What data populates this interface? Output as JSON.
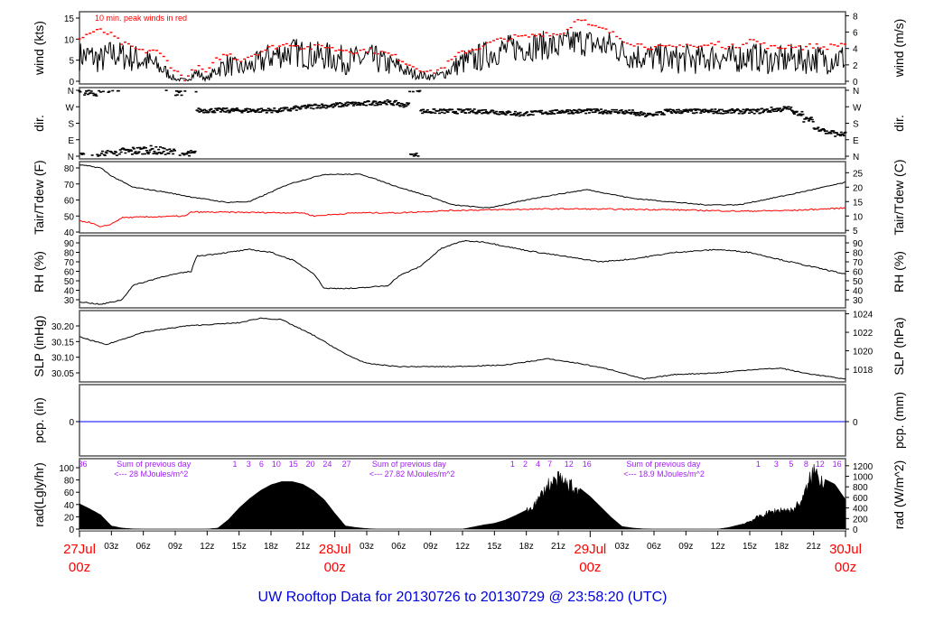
{
  "chart_data": {
    "type": "line",
    "title": "UW Rooftop Data for 20130726  to  20130729 @ 23:58:20  (UTC)",
    "xlim": [
      0,
      72
    ],
    "x_ticks": [
      {
        "h": 3,
        "label": "03z"
      },
      {
        "h": 6,
        "label": "06z"
      },
      {
        "h": 9,
        "label": "09z"
      },
      {
        "h": 12,
        "label": "12z"
      },
      {
        "h": 15,
        "label": "15z"
      },
      {
        "h": 18,
        "label": "18z"
      },
      {
        "h": 21,
        "label": "21z"
      },
      {
        "h": 27,
        "label": "03z"
      },
      {
        "h": 30,
        "label": "06z"
      },
      {
        "h": 33,
        "label": "09z"
      },
      {
        "h": 36,
        "label": "12z"
      },
      {
        "h": 39,
        "label": "15z"
      },
      {
        "h": 42,
        "label": "18z"
      },
      {
        "h": 45,
        "label": "21z"
      },
      {
        "h": 51,
        "label": "03z"
      },
      {
        "h": 54,
        "label": "06z"
      },
      {
        "h": 57,
        "label": "09z"
      },
      {
        "h": 60,
        "label": "12z"
      },
      {
        "h": 63,
        "label": "15z"
      },
      {
        "h": 66,
        "label": "18z"
      },
      {
        "h": 69,
        "label": "21z"
      }
    ],
    "day_labels": [
      {
        "h": 0,
        "date": "27Jul",
        "time": "00z"
      },
      {
        "h": 24,
        "date": "28Jul",
        "time": "00z"
      },
      {
        "h": 48,
        "date": "29Jul",
        "time": "00z"
      },
      {
        "h": 72,
        "date": "30Jul",
        "time": "00z"
      }
    ],
    "panels": {
      "wind": {
        "ylabel_left": "wind (kts)",
        "ylabel_right": "wind (m/s)",
        "ylim": [
          0,
          16
        ],
        "ticks_left": [
          0,
          5,
          10,
          15
        ],
        "ticks_right": [
          0,
          2,
          4,
          6,
          8
        ],
        "annotation": "10 min. peak winds in red",
        "series_color": "#000000",
        "peak_color": "#ff0000",
        "mean_hourly": [
          6,
          6,
          5,
          6.5,
          6,
          5.5,
          5,
          4,
          2.5,
          0.5,
          0.3,
          2,
          0.5,
          3,
          4,
          3,
          3.5,
          4.5,
          6,
          6.5,
          7,
          6.5,
          6,
          6,
          5.5,
          5,
          5,
          5.5,
          5,
          4,
          3.5,
          2,
          1.5,
          1,
          1.5,
          3,
          4.5,
          5,
          6,
          7,
          7.5,
          8,
          8,
          8.5,
          8.5,
          8,
          9,
          9.5,
          9,
          8.5,
          8.5,
          7,
          6,
          6,
          5.5,
          5.5,
          5,
          5.5,
          5,
          5.5,
          6,
          5,
          5.5,
          6,
          5.5,
          5,
          5,
          5.5,
          5,
          5.5,
          5,
          5.5,
          5.5
        ],
        "peak_hourly": [
          10,
          11.5,
          12,
          11,
          9,
          8,
          7,
          7.5,
          5.5,
          2.5,
          0.5,
          3.5,
          2,
          5.5,
          6.5,
          5,
          6,
          7,
          8,
          8.5,
          9,
          8,
          8,
          8.5,
          7.5,
          7.5,
          7,
          7.5,
          7,
          6.5,
          5.5,
          4,
          3,
          2,
          3,
          5,
          7,
          7.5,
          8.5,
          9.5,
          10,
          10.5,
          10.5,
          11,
          11.5,
          11,
          12.5,
          15.5,
          13,
          12.5,
          11.5,
          10,
          9,
          8.5,
          8,
          8,
          8,
          9,
          8,
          8.5,
          9,
          8,
          8.5,
          10,
          9,
          8,
          8,
          8.5,
          8,
          8.5,
          8,
          8.5,
          9
        ]
      },
      "dir": {
        "ylabel_left": "dir.",
        "ylabel_right": "dir.",
        "tick_labels": [
          "N",
          "E",
          "S",
          "W",
          "N"
        ],
        "tick_values": [
          0,
          90,
          180,
          270,
          360
        ],
        "hourly_deg": [
          355,
          350,
          10,
          15,
          25,
          30,
          35,
          30,
          20,
          355,
          10,
          250,
          250,
          250,
          250,
          250,
          250,
          250,
          250,
          255,
          262,
          270,
          275,
          275,
          280,
          285,
          285,
          290,
          295,
          290,
          280,
          5,
          245,
          245,
          245,
          245,
          245,
          245,
          245,
          240,
          235,
          230,
          235,
          240,
          240,
          245,
          245,
          245,
          245,
          245,
          245,
          240,
          230,
          225,
          235,
          245,
          245,
          245,
          245,
          245,
          245,
          245,
          245,
          245,
          250,
          255,
          260,
          235,
          200,
          150,
          130,
          120,
          115
        ]
      },
      "temp": {
        "ylabel_left": "Tair/Tdew (F)",
        "ylabel_right": "Tair/Tdew (C)",
        "ylim": [
          40,
          82
        ],
        "ticks_left": [
          40,
          50,
          60,
          70,
          80
        ],
        "ticks_right": [
          5,
          10,
          15,
          20,
          25
        ],
        "tair_points": [
          [
            0,
            82
          ],
          [
            2,
            80
          ],
          [
            3,
            75
          ],
          [
            5,
            68
          ],
          [
            8,
            65
          ],
          [
            10.4,
            62
          ],
          [
            13.8,
            58.5
          ],
          [
            16,
            59
          ],
          [
            19.7,
            70
          ],
          [
            23,
            76
          ],
          [
            26.5,
            76
          ],
          [
            30,
            68
          ],
          [
            33,
            62
          ],
          [
            35,
            57
          ],
          [
            38.4,
            55
          ],
          [
            43.5,
            62
          ],
          [
            47.7,
            66.5
          ],
          [
            52,
            61
          ],
          [
            58.7,
            57
          ],
          [
            62,
            57
          ],
          [
            67,
            63.7
          ],
          [
            72,
            71
          ]
        ],
        "tdew_points": [
          [
            0,
            47
          ],
          [
            1,
            46
          ],
          [
            2,
            43
          ],
          [
            3,
            45
          ],
          [
            4,
            49
          ],
          [
            10,
            50
          ],
          [
            10.5,
            52.5
          ],
          [
            21,
            52
          ],
          [
            22,
            50
          ],
          [
            24,
            51
          ],
          [
            26,
            52
          ],
          [
            30,
            52
          ],
          [
            35,
            53.5
          ],
          [
            45,
            54.5
          ],
          [
            55,
            54
          ],
          [
            62,
            53
          ],
          [
            67,
            53.5
          ],
          [
            72,
            55
          ]
        ],
        "tair_color": "#000000",
        "tdew_color": "#ff0000"
      },
      "rh": {
        "ylabel_left": "RH (%)",
        "ylabel_right": "RH (%)",
        "ylim": [
          24,
          94
        ],
        "ticks_left": [
          30,
          40,
          50,
          60,
          70,
          80,
          90
        ],
        "ticks_right": [
          30,
          40,
          50,
          60,
          70,
          80,
          90
        ],
        "points": [
          [
            0,
            28
          ],
          [
            2,
            25
          ],
          [
            4,
            30
          ],
          [
            5,
            45
          ],
          [
            8,
            55
          ],
          [
            10.5,
            60
          ],
          [
            11,
            76
          ],
          [
            14,
            80
          ],
          [
            16,
            83
          ],
          [
            18,
            80
          ],
          [
            20,
            72
          ],
          [
            22,
            58
          ],
          [
            23,
            42
          ],
          [
            26,
            42
          ],
          [
            29,
            45
          ],
          [
            30,
            55
          ],
          [
            32,
            65
          ],
          [
            34,
            84
          ],
          [
            36,
            92
          ],
          [
            38,
            91
          ],
          [
            42,
            82
          ],
          [
            46,
            75
          ],
          [
            49,
            70
          ],
          [
            52,
            73
          ],
          [
            56,
            80
          ],
          [
            60,
            83
          ],
          [
            63,
            80
          ],
          [
            66,
            72
          ],
          [
            70,
            62
          ],
          [
            72,
            57
          ]
        ]
      },
      "slp": {
        "ylabel_left": "SLP (inHg)",
        "ylabel_right": "SLP (hPa)",
        "ylim": [
          30.02,
          30.24
        ],
        "ticks_left": [
          "30.05",
          "30.10",
          "30.15",
          "30.20"
        ],
        "ticks_right": [
          1018,
          1020,
          1022,
          1024
        ],
        "points": [
          [
            0,
            30.165
          ],
          [
            2.5,
            30.14
          ],
          [
            6,
            30.18
          ],
          [
            10,
            30.2
          ],
          [
            15,
            30.21
          ],
          [
            17,
            30.225
          ],
          [
            19,
            30.22
          ],
          [
            22,
            30.17
          ],
          [
            25,
            30.11
          ],
          [
            27,
            30.08
          ],
          [
            30,
            30.07
          ],
          [
            35,
            30.07
          ],
          [
            40,
            30.075
          ],
          [
            44,
            30.095
          ],
          [
            47,
            30.08
          ],
          [
            50,
            30.06
          ],
          [
            53,
            30.03
          ],
          [
            56,
            30.045
          ],
          [
            60,
            30.05
          ],
          [
            63,
            30.06
          ],
          [
            66,
            30.065
          ],
          [
            68,
            30.05
          ],
          [
            72,
            30.03
          ]
        ]
      },
      "pcp": {
        "ylabel_left": "pcp. (in)",
        "ylabel_right": "pcp. (mm)",
        "ticks_left": [
          0
        ],
        "ticks_right": [
          0
        ],
        "points": [
          [
            0,
            0
          ],
          [
            72,
            0
          ]
        ],
        "color": "#0000ff"
      },
      "rad": {
        "ylabel_left": "rad(Lgly/hr)",
        "ylabel_right": "rad (W/m^2)",
        "ylim_left": [
          0,
          100
        ],
        "ylim_right": [
          0,
          1200
        ],
        "ticks_left": [
          0,
          20,
          40,
          60,
          80,
          100
        ],
        "ticks_right": [
          0,
          200,
          400,
          600,
          800,
          1000,
          1200
        ],
        "hourly_wm2": [
          480,
          380,
          270,
          60,
          20,
          5,
          0,
          0,
          0,
          0,
          0,
          0,
          0,
          20,
          180,
          400,
          580,
          730,
          840,
          900,
          900,
          850,
          730,
          560,
          300,
          60,
          30,
          10,
          0,
          0,
          0,
          0,
          0,
          0,
          0,
          0,
          0,
          40,
          80,
          110,
          170,
          260,
          360,
          550,
          900,
          1000,
          900,
          780,
          620,
          420,
          220,
          50,
          20,
          5,
          0,
          0,
          0,
          0,
          0,
          0,
          0,
          30,
          80,
          160,
          270,
          350,
          400,
          380,
          620,
          1200,
          950,
          850,
          560
        ],
        "hour_marks": [
          {
            "h": 0.3,
            "label": "36"
          },
          {
            "h": 14.6,
            "label": "1"
          },
          {
            "h": 15.9,
            "label": "3"
          },
          {
            "h": 17.1,
            "label": "6"
          },
          {
            "h": 18.5,
            "label": "10"
          },
          {
            "h": 20.1,
            "label": "15"
          },
          {
            "h": 21.7,
            "label": "20"
          },
          {
            "h": 23.3,
            "label": "24"
          },
          {
            "h": 25.1,
            "label": "27"
          },
          {
            "h": 40.7,
            "label": "1"
          },
          {
            "h": 41.9,
            "label": "2"
          },
          {
            "h": 43.1,
            "label": "4"
          },
          {
            "h": 44.2,
            "label": "7"
          },
          {
            "h": 46,
            "label": "12"
          },
          {
            "h": 47.7,
            "label": "16"
          },
          {
            "h": 63.8,
            "label": "1"
          },
          {
            "h": 65.5,
            "label": "3"
          },
          {
            "h": 66.9,
            "label": "5"
          },
          {
            "h": 68.3,
            "label": "8"
          },
          {
            "h": 69.6,
            "label": "12"
          },
          {
            "h": 71.2,
            "label": "16"
          }
        ],
        "daily_sums": [
          {
            "h": 3.5,
            "line1": "Sum of previous day",
            "line2": "<--- 28 MJoules/m^2"
          },
          {
            "h": 27.5,
            "line1": "Sum of previous day",
            "line2": "<--- 27.82 MJoules/m^2"
          },
          {
            "h": 51.4,
            "line1": "Sum of previous day",
            "line2": "<--- 18.9 MJoules/m^2"
          }
        ]
      }
    }
  }
}
